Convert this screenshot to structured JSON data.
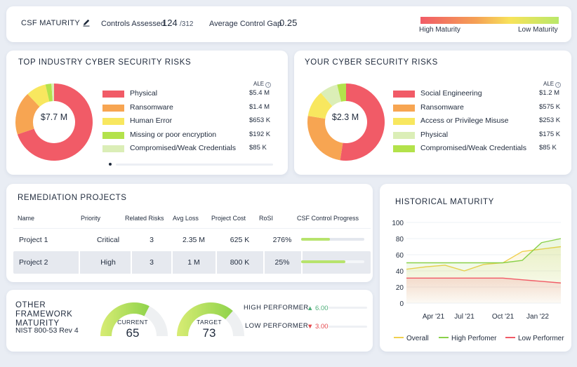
{
  "header": {
    "maturity_label": "CSF MATURITY",
    "controls_label": "Controls Assessed",
    "controls_value": "124",
    "controls_total": "/312",
    "gap_label": "Average Control Gap",
    "gap_value": "0.25",
    "legend_high": "High Maturity",
    "legend_low": "Low Maturity"
  },
  "industry_risks": {
    "title": "TOP INDUSTRY CYBER SECURITY RISKS",
    "total": "$7.7 M",
    "ale_label": "ALE",
    "items": [
      {
        "label": "Physical",
        "value": "$5.4 M",
        "amount": 5.4,
        "color": "#f15b67"
      },
      {
        "label": "Ransomware",
        "value": "$1.4 M",
        "amount": 1.4,
        "color": "#f7a552"
      },
      {
        "label": "Human Error",
        "value": "$653 K",
        "amount": 0.653,
        "color": "#f8e75f"
      },
      {
        "label": "Missing or poor encryption",
        "value": "$192 K",
        "amount": 0.192,
        "color": "#b3e24b"
      },
      {
        "label": "Compromised/Weak Credentials",
        "value": "$85 K",
        "amount": 0.085,
        "color": "#dbeeb7"
      }
    ]
  },
  "your_risks": {
    "title": "YOUR CYBER SECURITY RISKS",
    "total": "$2.3 M",
    "ale_label": "ALE",
    "items": [
      {
        "label": "Social Engineering",
        "value": "$1.2 M",
        "amount": 1.2,
        "color": "#f15b67"
      },
      {
        "label": "Ransomware",
        "value": "$575 K",
        "amount": 0.575,
        "color": "#f7a552"
      },
      {
        "label": "Access or Privilege Misuse",
        "value": "$253 K",
        "amount": 0.253,
        "color": "#f8e75f"
      },
      {
        "label": "Physical",
        "value": "$175 K",
        "amount": 0.175,
        "color": "#dbeeb7"
      },
      {
        "label": "Compromised/Weak Credentials",
        "value": "$85 K",
        "amount": 0.085,
        "color": "#b3e24b"
      }
    ]
  },
  "remediation": {
    "title": "REMEDIATION PROJECTS",
    "columns": [
      "Name",
      "Priority",
      "Related Risks",
      "Avg Loss",
      "Project Cost",
      "RoSI",
      "CSF Control Progress"
    ],
    "rows": [
      {
        "name": "Project 1",
        "priority": "Critical",
        "related": "3",
        "avg_loss": "2.35 M",
        "cost": "625 K",
        "rosi": "276%",
        "progress": 0.45
      },
      {
        "name": "Project 2",
        "priority": "High",
        "related": "3",
        "avg_loss": "1 M",
        "cost": "800 K",
        "rosi": "25%",
        "progress": 0.7
      }
    ]
  },
  "frameworks": {
    "title": "OTHER FRAMEWORK MATURITY",
    "name": "NIST 800-53 Rev 4",
    "current_label": "CURRENT",
    "current_value": "65",
    "current": 65,
    "target_label": "TARGET",
    "target_value": "73",
    "target": 73,
    "high_label": "HIGH PERFORMER",
    "high_value": "6.00",
    "low_label": "LOW PERFORMER",
    "low_value": "3.00",
    "up_color": "#4fae7a",
    "down_color": "#e5484d"
  },
  "historical": {
    "title": "HISTORICAL MATURITY"
  },
  "chart_data": {
    "type": "line",
    "title": "HISTORICAL MATURITY",
    "xlabel": "",
    "ylabel": "",
    "ylim": [
      0,
      100
    ],
    "yticks": [
      "0",
      "20",
      "40",
      "60",
      "80",
      "100"
    ],
    "x": [
      0,
      1,
      2,
      3,
      4,
      5,
      6,
      7,
      8
    ],
    "xtick_positions": [
      1.4,
      3,
      5,
      6.8
    ],
    "xticks": [
      "Apr '21",
      "Jul '21",
      "Oct '21",
      "Jan '22"
    ],
    "series": [
      {
        "name": "Overall",
        "color": "#f0d04f",
        "values": [
          42,
          45,
          47,
          40,
          48,
          50,
          64,
          67,
          70
        ]
      },
      {
        "name": "High Perfomer",
        "color": "#8ad14a",
        "values": [
          50,
          50,
          50,
          50,
          50,
          50,
          53,
          75,
          80
        ]
      },
      {
        "name": "Low Performer",
        "color": "#f15b67",
        "values": [
          31,
          31,
          31,
          31,
          31,
          31,
          29,
          27,
          25
        ]
      }
    ]
  }
}
